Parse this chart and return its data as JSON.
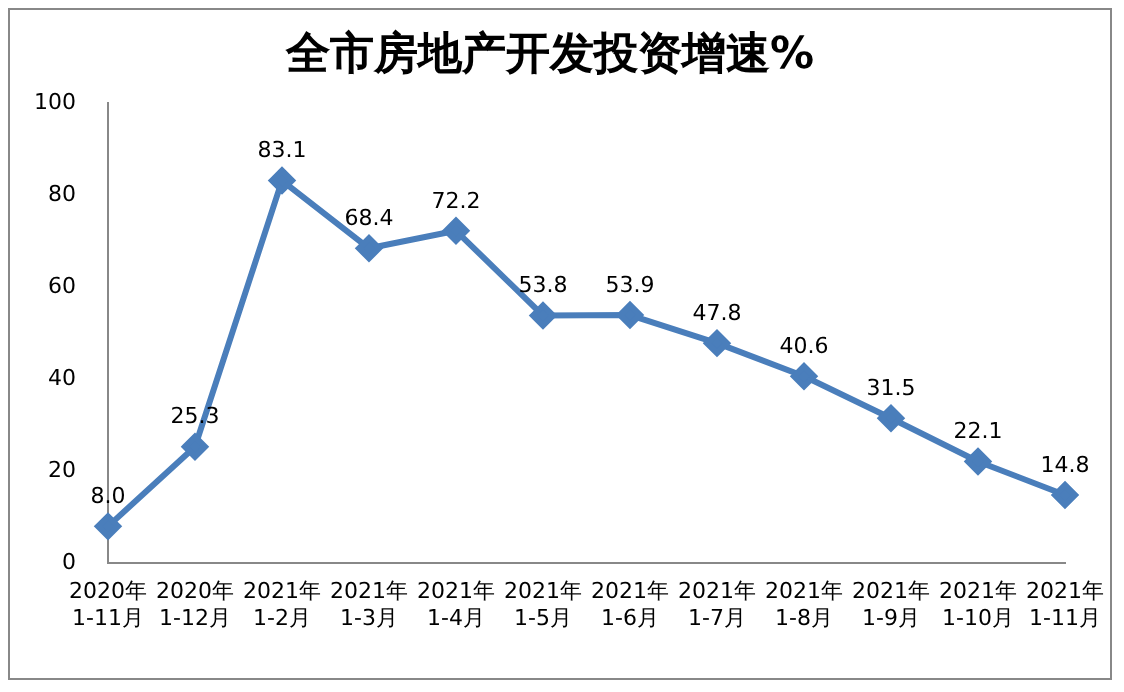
{
  "chart_data": {
    "type": "line",
    "title": "全市房地产开发投资增速%",
    "categories": [
      "2020年\n1-11月",
      "2020年\n1-12月",
      "2021年\n1-2月",
      "2021年\n1-3月",
      "2021年\n1-4月",
      "2021年\n1-5月",
      "2021年\n1-6月",
      "2021年\n1-7月",
      "2021年\n1-8月",
      "2021年\n1-9月",
      "2021年\n1-10月",
      "2021年\n1-11月"
    ],
    "series": [
      {
        "color": "#4a7ebb",
        "values": [
          8.0,
          25.3,
          83.1,
          68.4,
          72.2,
          53.8,
          53.9,
          47.8,
          40.6,
          31.5,
          22.1,
          14.8
        ],
        "value_labels": [
          "8.0",
          "25.3",
          "83.1",
          "68.4",
          "72.2",
          "53.8",
          "53.9",
          "47.8",
          "40.6",
          "31.5",
          "22.1",
          "14.8"
        ]
      }
    ],
    "ylim": [
      0,
      100
    ],
    "yticks": [
      0,
      20,
      40,
      60,
      80,
      100
    ],
    "grid": false,
    "legend": false,
    "marker": "diamond",
    "line_style": "solid"
  }
}
